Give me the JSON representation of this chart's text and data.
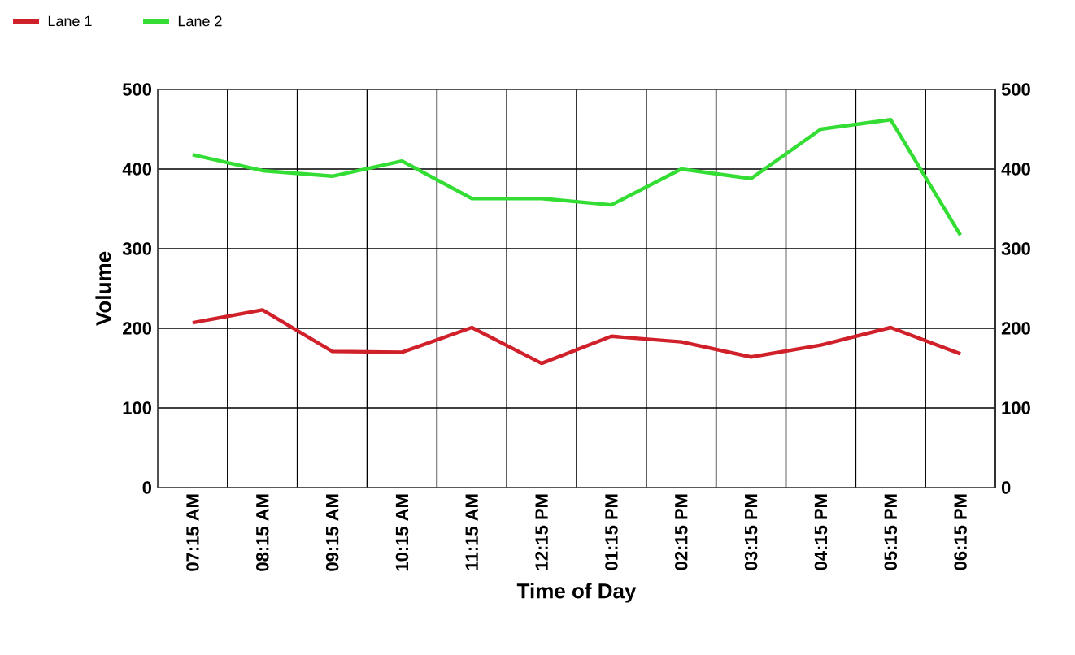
{
  "chart_data": {
    "type": "line",
    "xlabel": "Time of Day",
    "ylabel": "Volume",
    "categories": [
      "07:15 AM",
      "08:15 AM",
      "09:15 AM",
      "10:15 AM",
      "11:15 AM",
      "12:15 PM",
      "01:15 PM",
      "02:15 PM",
      "03:15 PM",
      "04:15 PM",
      "05:15 PM",
      "06:15 PM"
    ],
    "series": [
      {
        "name": "Lane 1",
        "color": "#d0202a",
        "values": [
          207,
          223,
          171,
          170,
          201,
          156,
          190,
          183,
          164,
          179,
          201,
          168
        ]
      },
      {
        "name": "Lane 2",
        "color": "#33dd33",
        "values": [
          418,
          398,
          391,
          410,
          363,
          363,
          355,
          400,
          388,
          450,
          462,
          317
        ]
      }
    ],
    "ylim": [
      0,
      500
    ],
    "yticks": [
      0,
      100,
      200,
      300,
      400,
      500
    ],
    "y2lim": [
      0,
      500
    ],
    "y2ticks": [
      0,
      100,
      200,
      300,
      400,
      500
    ],
    "grid": true,
    "legend": "top left",
    "marker": "none",
    "line_style": "solid"
  }
}
